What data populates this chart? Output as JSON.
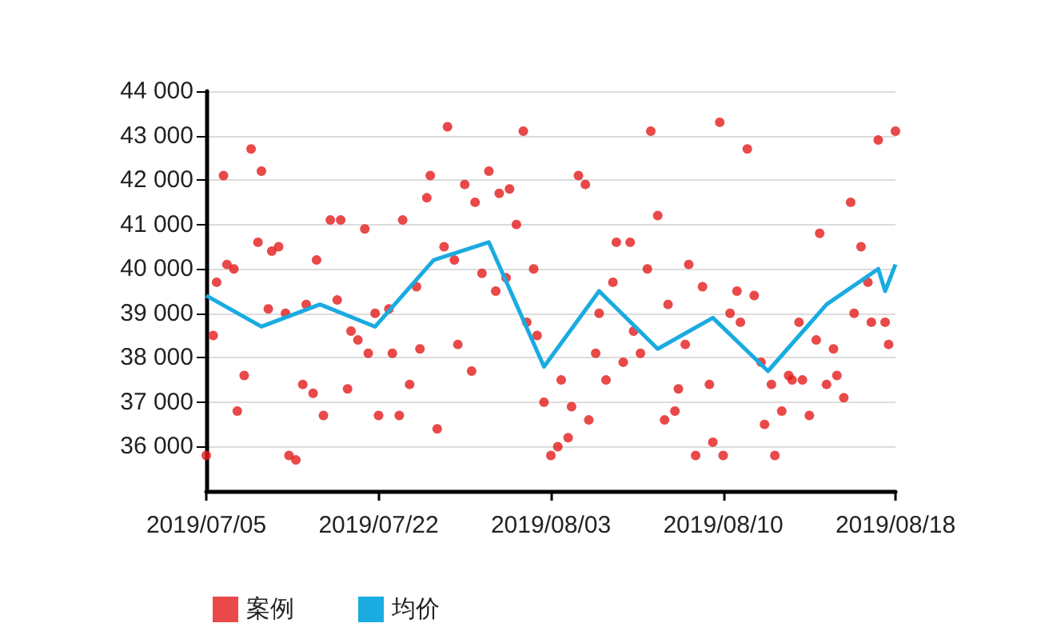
{
  "chart_data": {
    "type": "scatter",
    "categories": [
      "2019/07/05",
      null,
      null,
      null,
      null,
      null,
      null,
      null,
      null,
      null,
      null,
      null,
      null,
      null,
      null,
      null,
      null,
      null,
      null,
      null,
      null,
      null,
      null,
      null,
      null,
      null,
      null,
      null,
      null,
      null,
      null,
      null,
      null,
      null,
      null,
      null,
      null,
      null,
      null,
      null,
      null,
      null,
      null,
      null,
      null,
      null,
      null,
      null,
      null,
      null,
      "2019/07/22",
      null,
      null,
      null,
      null,
      null,
      null,
      null,
      null,
      null,
      null,
      null,
      null,
      null,
      null,
      null,
      null,
      null,
      null,
      null,
      null,
      null,
      null,
      null,
      null,
      null,
      null,
      null,
      null,
      null,
      null,
      null,
      null,
      null,
      null,
      null,
      null,
      null,
      null,
      null,
      null,
      null,
      null,
      null,
      null,
      null,
      null,
      null,
      null,
      null,
      "2019/08/03",
      null,
      null,
      null,
      null,
      null,
      null,
      null,
      null,
      null,
      null,
      null,
      null,
      null,
      null,
      null,
      null,
      null,
      null,
      null,
      null,
      null,
      null,
      null,
      null,
      null,
      null,
      null,
      null,
      null,
      null,
      null,
      null,
      null,
      null,
      null,
      null,
      null,
      null,
      null,
      null,
      null,
      null,
      null,
      null,
      null,
      null,
      null,
      null,
      null,
      "2019/08/10",
      null,
      null,
      null,
      null,
      null,
      null,
      null,
      null,
      null,
      null,
      null,
      null,
      null,
      null,
      null,
      null,
      null,
      null,
      null,
      null,
      null,
      null,
      null,
      null,
      null,
      null,
      null,
      null,
      null,
      null,
      null,
      null,
      null,
      null,
      null,
      null,
      null,
      null,
      null,
      null,
      null,
      null,
      null,
      null,
      null,
      null,
      null,
      null,
      null,
      "2019/08/18"
    ],
    "series": [
      {
        "name": "案例",
        "marker": "circle",
        "color": "#e31c1c",
        "values": [
          35800,
          null,
          38500,
          39700,
          null,
          42100,
          40100,
          null,
          40000,
          36800,
          null,
          37600,
          null,
          42700,
          null,
          40600,
          42200,
          null,
          39100,
          40400,
          null,
          40500,
          null,
          39000,
          35800,
          null,
          35700,
          null,
          37400,
          39200,
          null,
          37200,
          40200,
          null,
          36700,
          null,
          41100,
          null,
          39300,
          41100,
          null,
          37300,
          38600,
          null,
          38400,
          null,
          40900,
          38100,
          null,
          39000,
          36700,
          null,
          null,
          39100,
          38100,
          null,
          36700,
          41100,
          null,
          37400,
          null,
          39600,
          38200,
          null,
          41600,
          42100,
          null,
          36400,
          null,
          40500,
          43200,
          null,
          40200,
          38300,
          null,
          41900,
          null,
          37700,
          41500,
          null,
          39900,
          null,
          42200,
          null,
          39500,
          41700,
          null,
          39800,
          41800,
          null,
          41000,
          null,
          43100,
          38800,
          null,
          40000,
          38500,
          null,
          37000,
          null,
          35800,
          null,
          36000,
          37500,
          null,
          36200,
          36900,
          null,
          42100,
          null,
          41900,
          36600,
          null,
          38100,
          39000,
          null,
          37500,
          null,
          39700,
          40600,
          null,
          37900,
          null,
          40600,
          38600,
          null,
          38100,
          null,
          40000,
          43100,
          null,
          41200,
          null,
          36600,
          39200,
          null,
          36800,
          37300,
          null,
          38300,
          40100,
          null,
          35800,
          null,
          39600,
          null,
          37400,
          36100,
          null,
          43300,
          35800,
          null,
          39000,
          null,
          39500,
          38800,
          null,
          42700,
          null,
          39400,
          null,
          37900,
          36500,
          null,
          37400,
          35800,
          null,
          36800,
          null,
          37600,
          37500,
          null,
          38800,
          37500,
          null,
          36700,
          null,
          38400,
          40800,
          null,
          37400,
          null,
          38200,
          37600,
          null,
          37100,
          null,
          41500,
          39000,
          null,
          40500,
          null,
          39700,
          38800,
          null,
          42900,
          null,
          38800,
          38300,
          null,
          43100
        ]
      },
      {
        "name": "均价",
        "type": "line",
        "marker": "none",
        "color": "#1aabe0",
        "values": [
          39400,
          null,
          null,
          null,
          null,
          null,
          null,
          null,
          null,
          null,
          null,
          null,
          null,
          null,
          null,
          null,
          38700,
          null,
          null,
          null,
          null,
          null,
          null,
          null,
          null,
          null,
          null,
          null,
          null,
          null,
          null,
          null,
          null,
          39200,
          null,
          null,
          null,
          null,
          null,
          null,
          null,
          null,
          null,
          null,
          null,
          null,
          null,
          null,
          null,
          38700,
          null,
          null,
          null,
          null,
          null,
          null,
          null,
          null,
          null,
          null,
          null,
          null,
          null,
          null,
          null,
          null,
          40200,
          null,
          null,
          null,
          null,
          null,
          null,
          null,
          null,
          null,
          null,
          null,
          null,
          null,
          null,
          null,
          40600,
          null,
          null,
          null,
          null,
          null,
          null,
          null,
          null,
          null,
          null,
          null,
          null,
          null,
          null,
          null,
          37800,
          null,
          null,
          null,
          null,
          null,
          null,
          null,
          null,
          null,
          null,
          null,
          null,
          null,
          null,
          null,
          39500,
          null,
          null,
          null,
          null,
          null,
          null,
          null,
          null,
          null,
          null,
          null,
          null,
          null,
          null,
          null,
          null,
          38200,
          null,
          null,
          null,
          null,
          null,
          null,
          null,
          null,
          null,
          null,
          null,
          null,
          null,
          null,
          null,
          38900,
          null,
          null,
          null,
          null,
          null,
          null,
          null,
          null,
          null,
          null,
          null,
          null,
          null,
          null,
          null,
          37700,
          null,
          null,
          null,
          null,
          null,
          null,
          null,
          null,
          null,
          null,
          null,
          null,
          null,
          null,
          null,
          null,
          39200,
          null,
          null,
          null,
          null,
          null,
          null,
          null,
          null,
          null,
          null,
          null,
          null,
          null,
          null,
          40000,
          null,
          39500,
          null,
          null,
          40100
        ]
      }
    ],
    "ylim": [
      35000,
      44000
    ],
    "yticks": [
      {
        "value": 36000,
        "label": "36 000"
      },
      {
        "value": 37000,
        "label": "37 000"
      },
      {
        "value": 38000,
        "label": "38 000"
      },
      {
        "value": 39000,
        "label": "39 000"
      },
      {
        "value": 40000,
        "label": "40 000"
      },
      {
        "value": 41000,
        "label": "41 000"
      },
      {
        "value": 42000,
        "label": "42 000"
      },
      {
        "value": 43000,
        "label": "43 000"
      },
      {
        "value": 44000,
        "label": "44 000"
      }
    ],
    "grid": "y",
    "legend": "bottom left"
  }
}
